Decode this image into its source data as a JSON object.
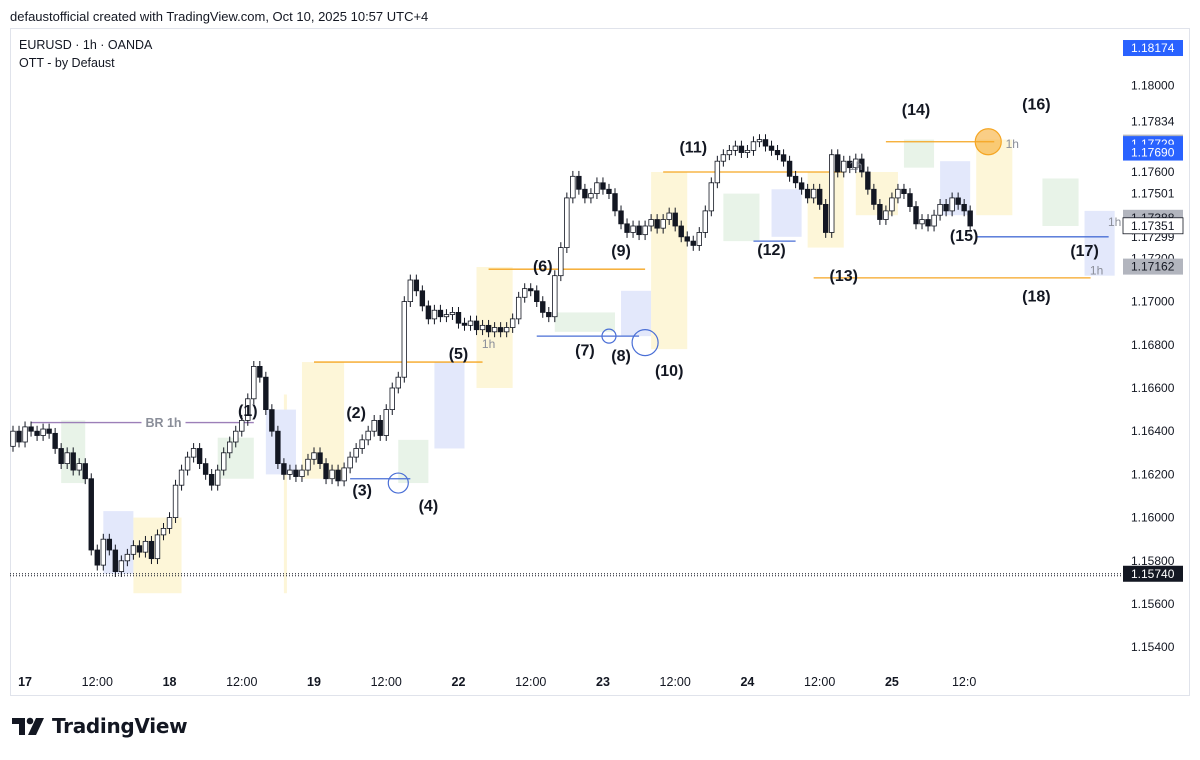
{
  "header": {
    "text": "defaustofficial created with TradingView.com, Oct 10, 2025 10:57 UTC+4"
  },
  "legend": {
    "symbol_line": "EURUSD · 1h · OANDA",
    "indicator_line": "OTT - by Defaust"
  },
  "branding": {
    "name": "TradingView",
    "icon": "tradingview-logo-icon"
  },
  "colors": {
    "bull_body": "#ffffff",
    "bear_body": "#131722",
    "wick": "#131722",
    "level_orange": "#f5a623",
    "level_blue": "#4a6fd6",
    "br_line": "#9c7fb8",
    "zone_yellow": "#fdf6d8",
    "zone_green": "#e8f3e8",
    "zone_blue": "#e3e8fb",
    "price_tag_blue": "#2962ff",
    "price_tag_grey": "#b2b5be",
    "price_tag_dark": "#131722"
  },
  "chart_data": {
    "type": "candlestick",
    "symbol": "EURUSD",
    "timeframe": "1h",
    "broker": "OANDA",
    "ylim": [
      1.153,
      1.183
    ],
    "y_ticks": [
      "1.15400",
      "1.15600",
      "1.15800",
      "1.16000",
      "1.16200",
      "1.16400",
      "1.16600",
      "1.16800",
      "1.17000",
      "1.17200",
      "1.17299",
      "1.17501",
      "1.17600",
      "1.17834",
      "1.18000"
    ],
    "x_ticks": [
      {
        "label": "17",
        "bold": true,
        "i": 2
      },
      {
        "label": "12:00",
        "bold": false,
        "i": 14
      },
      {
        "label": "18",
        "bold": true,
        "i": 26
      },
      {
        "label": "12:00",
        "bold": false,
        "i": 38
      },
      {
        "label": "19",
        "bold": true,
        "i": 50
      },
      {
        "label": "12:00",
        "bold": false,
        "i": 62
      },
      {
        "label": "22",
        "bold": true,
        "i": 74
      },
      {
        "label": "12:00",
        "bold": false,
        "i": 86
      },
      {
        "label": "23",
        "bold": true,
        "i": 98
      },
      {
        "label": "12:00",
        "bold": false,
        "i": 110
      },
      {
        "label": "24",
        "bold": true,
        "i": 122
      },
      {
        "label": "12:00",
        "bold": false,
        "i": 134
      },
      {
        "label": "25",
        "bold": true,
        "i": 146
      },
      {
        "label": "12:0",
        "bold": false,
        "i": 158
      }
    ],
    "closes": [
      1.164,
      1.1635,
      1.1642,
      1.164,
      1.1638,
      1.1641,
      1.1639,
      1.1632,
      1.1625,
      1.163,
      1.1622,
      1.1625,
      1.1618,
      1.1585,
      1.1578,
      1.159,
      1.1585,
      1.1575,
      1.158,
      1.1583,
      1.1587,
      1.1584,
      1.1589,
      1.1581,
      1.1592,
      1.1595,
      1.16,
      1.1615,
      1.1622,
      1.1628,
      1.1632,
      1.1625,
      1.162,
      1.1615,
      1.1622,
      1.163,
      1.1635,
      1.164,
      1.1645,
      1.1655,
      1.167,
      1.1665,
      1.165,
      1.164,
      1.1625,
      1.162,
      1.1622,
      1.1619,
      1.1622,
      1.1627,
      1.163,
      1.1625,
      1.1618,
      1.1622,
      1.1617,
      1.1623,
      1.1628,
      1.1632,
      1.1636,
      1.164,
      1.1645,
      1.1638,
      1.165,
      1.166,
      1.1665,
      1.17,
      1.171,
      1.1705,
      1.1698,
      1.1692,
      1.1696,
      1.1693,
      1.1694,
      1.1695,
      1.169,
      1.1689,
      1.1691,
      1.1687,
      1.1689,
      1.1686,
      1.1688,
      1.1686,
      1.1688,
      1.1692,
      1.1702,
      1.1706,
      1.1705,
      1.17,
      1.1695,
      1.1693,
      1.1712,
      1.1725,
      1.1748,
      1.1758,
      1.1752,
      1.1748,
      1.175,
      1.1755,
      1.1752,
      1.175,
      1.1742,
      1.1736,
      1.1732,
      1.1735,
      1.1731,
      1.1735,
      1.1738,
      1.1734,
      1.1738,
      1.1741,
      1.1735,
      1.173,
      1.1728,
      1.1726,
      1.1732,
      1.1742,
      1.1755,
      1.1765,
      1.1768,
      1.177,
      1.1772,
      1.1769,
      1.177,
      1.1774,
      1.1775,
      1.1772,
      1.177,
      1.1768,
      1.1765,
      1.1758,
      1.1755,
      1.1752,
      1.1748,
      1.1752,
      1.1745,
      1.1732,
      1.1768,
      1.176,
      1.1765,
      1.1762,
      1.1766,
      1.176,
      1.1752,
      1.1745,
      1.1738,
      1.1742,
      1.1748,
      1.1752,
      1.175,
      1.1744,
      1.1736,
      1.1738,
      1.1735,
      1.174,
      1.1745,
      1.1742,
      1.1748,
      1.1745,
      1.1742,
      1.1735
    ],
    "annotations": [
      {
        "label": "(1)",
        "i": 39,
        "price": 1.1647
      },
      {
        "label": "(2)",
        "i": 57,
        "price": 1.1646
      },
      {
        "label": "(3)",
        "i": 58,
        "price": 1.16102
      },
      {
        "label": "(4)",
        "i": 69,
        "price": 1.1603
      },
      {
        "label": "(5)",
        "i": 74,
        "price": 1.16735
      },
      {
        "label": "(6)",
        "i": 88,
        "price": 1.1714
      },
      {
        "label": "(7)",
        "i": 95,
        "price": 1.1675
      },
      {
        "label": "(8)",
        "i": 101,
        "price": 1.16725
      },
      {
        "label": "(9)",
        "i": 101,
        "price": 1.1721
      },
      {
        "label": "(10)",
        "i": 109,
        "price": 1.16655
      },
      {
        "label": "(11)",
        "i": 113,
        "price": 1.1769
      },
      {
        "label": "(12)",
        "i": 126,
        "price": 1.17215
      },
      {
        "label": "(13)",
        "i": 138,
        "price": 1.17095
      },
      {
        "label": "(14)",
        "i": 150,
        "price": 1.17865
      },
      {
        "label": "(15)",
        "i": 158,
        "price": 1.1728
      },
      {
        "label": "(16)",
        "i": 170,
        "price": 1.1789
      },
      {
        "label": "(17)",
        "i": 178,
        "price": 1.1721
      },
      {
        "label": "(18)",
        "i": 170,
        "price": 1.17
      }
    ],
    "timeframe_marks": [
      {
        "label": "1h",
        "i": 79,
        "price": 1.16785
      },
      {
        "label": "1h",
        "i": 140,
        "price": 1.1761
      },
      {
        "label": "1h",
        "i": 166,
        "price": 1.1771
      },
      {
        "label": "1h",
        "i": 183,
        "price": 1.1735
      },
      {
        "label": "1h",
        "i": 180,
        "price": 1.17125
      }
    ],
    "br_label": "BR 1h",
    "br_level": 1.1644,
    "price_tags": [
      {
        "value": "1.18174",
        "price": 1.18174,
        "style": "blue"
      },
      {
        "value": "1.17736",
        "price": 1.17736,
        "style": "grey"
      },
      {
        "value": "1.17729",
        "price": 1.17729,
        "style": "blue"
      },
      {
        "value": "1.17690",
        "price": 1.1769,
        "style": "blue"
      },
      {
        "value": "1.17388",
        "price": 1.17388,
        "style": "grey"
      },
      {
        "value": "1.17351",
        "price": 1.17351,
        "style": "white"
      },
      {
        "value": "1.17162",
        "price": 1.17162,
        "style": "grey"
      },
      {
        "value": "1.15740",
        "price": 1.1574,
        "style": "dark"
      }
    ],
    "current_price_line": 1.1574
  }
}
